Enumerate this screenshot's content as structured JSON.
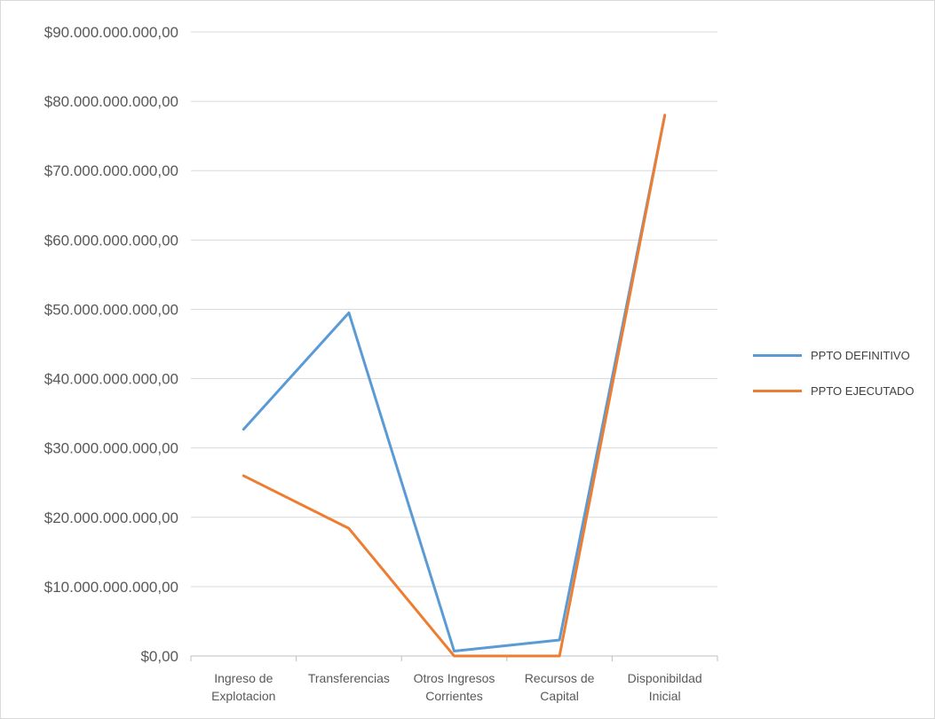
{
  "chart_data": {
    "type": "line",
    "title": "",
    "xlabel": "",
    "ylabel": "",
    "categories": [
      [
        "Ingreso de",
        "Explotacion"
      ],
      [
        "Transferencias"
      ],
      [
        "Otros Ingresos",
        "Corrientes"
      ],
      [
        "Recursos de",
        "Capital"
      ],
      [
        "Disponibildad",
        "Inicial"
      ]
    ],
    "ylim": [
      0,
      90000000000
    ],
    "ytick_values": [
      0,
      10000000000,
      20000000000,
      30000000000,
      40000000000,
      50000000000,
      60000000000,
      70000000000,
      80000000000,
      90000000000
    ],
    "ytick_labels": [
      "$0,00",
      "$10.000.000.000,00",
      "$20.000.000.000,00",
      "$30.000.000.000,00",
      "$40.000.000.000,00",
      "$50.000.000.000,00",
      "$60.000.000.000,00",
      "$70.000.000.000,00",
      "$80.000.000.000,00",
      "$90.000.000.000,00"
    ],
    "grid": true,
    "legend_position": "right",
    "series": [
      {
        "name": "PPTO DEFINITIVO",
        "color": "#5b9bd5",
        "values": [
          32700000000,
          49500000000,
          700000000,
          2300000000,
          78000000000
        ]
      },
      {
        "name": "PPTO EJECUTADO",
        "color": "#ed7d31",
        "values": [
          26000000000,
          18400000000,
          0,
          0,
          78000000000
        ]
      }
    ]
  }
}
